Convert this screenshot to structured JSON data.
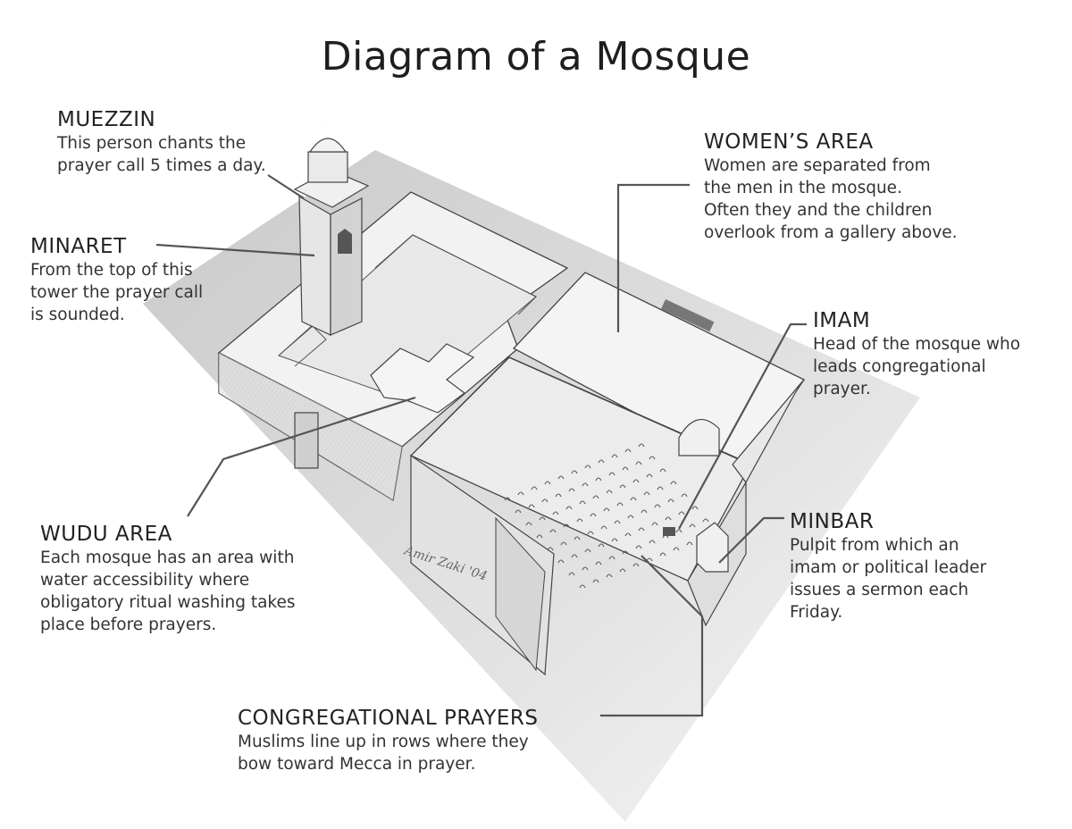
{
  "title": "Diagram of a Mosque",
  "labels": {
    "muezzin": {
      "heading": "MUEZZIN",
      "body": "This person chants the\nprayer call 5 times a day."
    },
    "minaret": {
      "heading": "MINARET",
      "body": "From the top of this\ntower the prayer call\nis sounded."
    },
    "wudu": {
      "heading": "WUDU AREA",
      "body": "Each  mosque has an area with\nwater accessibility where\nobligatory ritual washing takes\nplace before prayers."
    },
    "women": {
      "heading": "WOMEN’S AREA",
      "body": "Women are separated from\nthe men in the mosque.\nOften they and the children\noverlook from a gallery above."
    },
    "imam": {
      "heading": "IMAM",
      "body": "Head of the mosque who\nleads congregational\nprayer."
    },
    "minbar": {
      "heading": "MINBAR",
      "body": "Pulpit from which an\nimam or political leader\nissues a sermon each\nFriday."
    },
    "congregational": {
      "heading": "CONGREGATIONAL PRAYERS",
      "body": "Muslims line up in rows where they\nbow toward Mecca in prayer."
    }
  },
  "colors": {
    "shadow": "#d9d9d9",
    "wall": "#efefef",
    "line": "#555555",
    "ink": "#3a3a3a"
  }
}
